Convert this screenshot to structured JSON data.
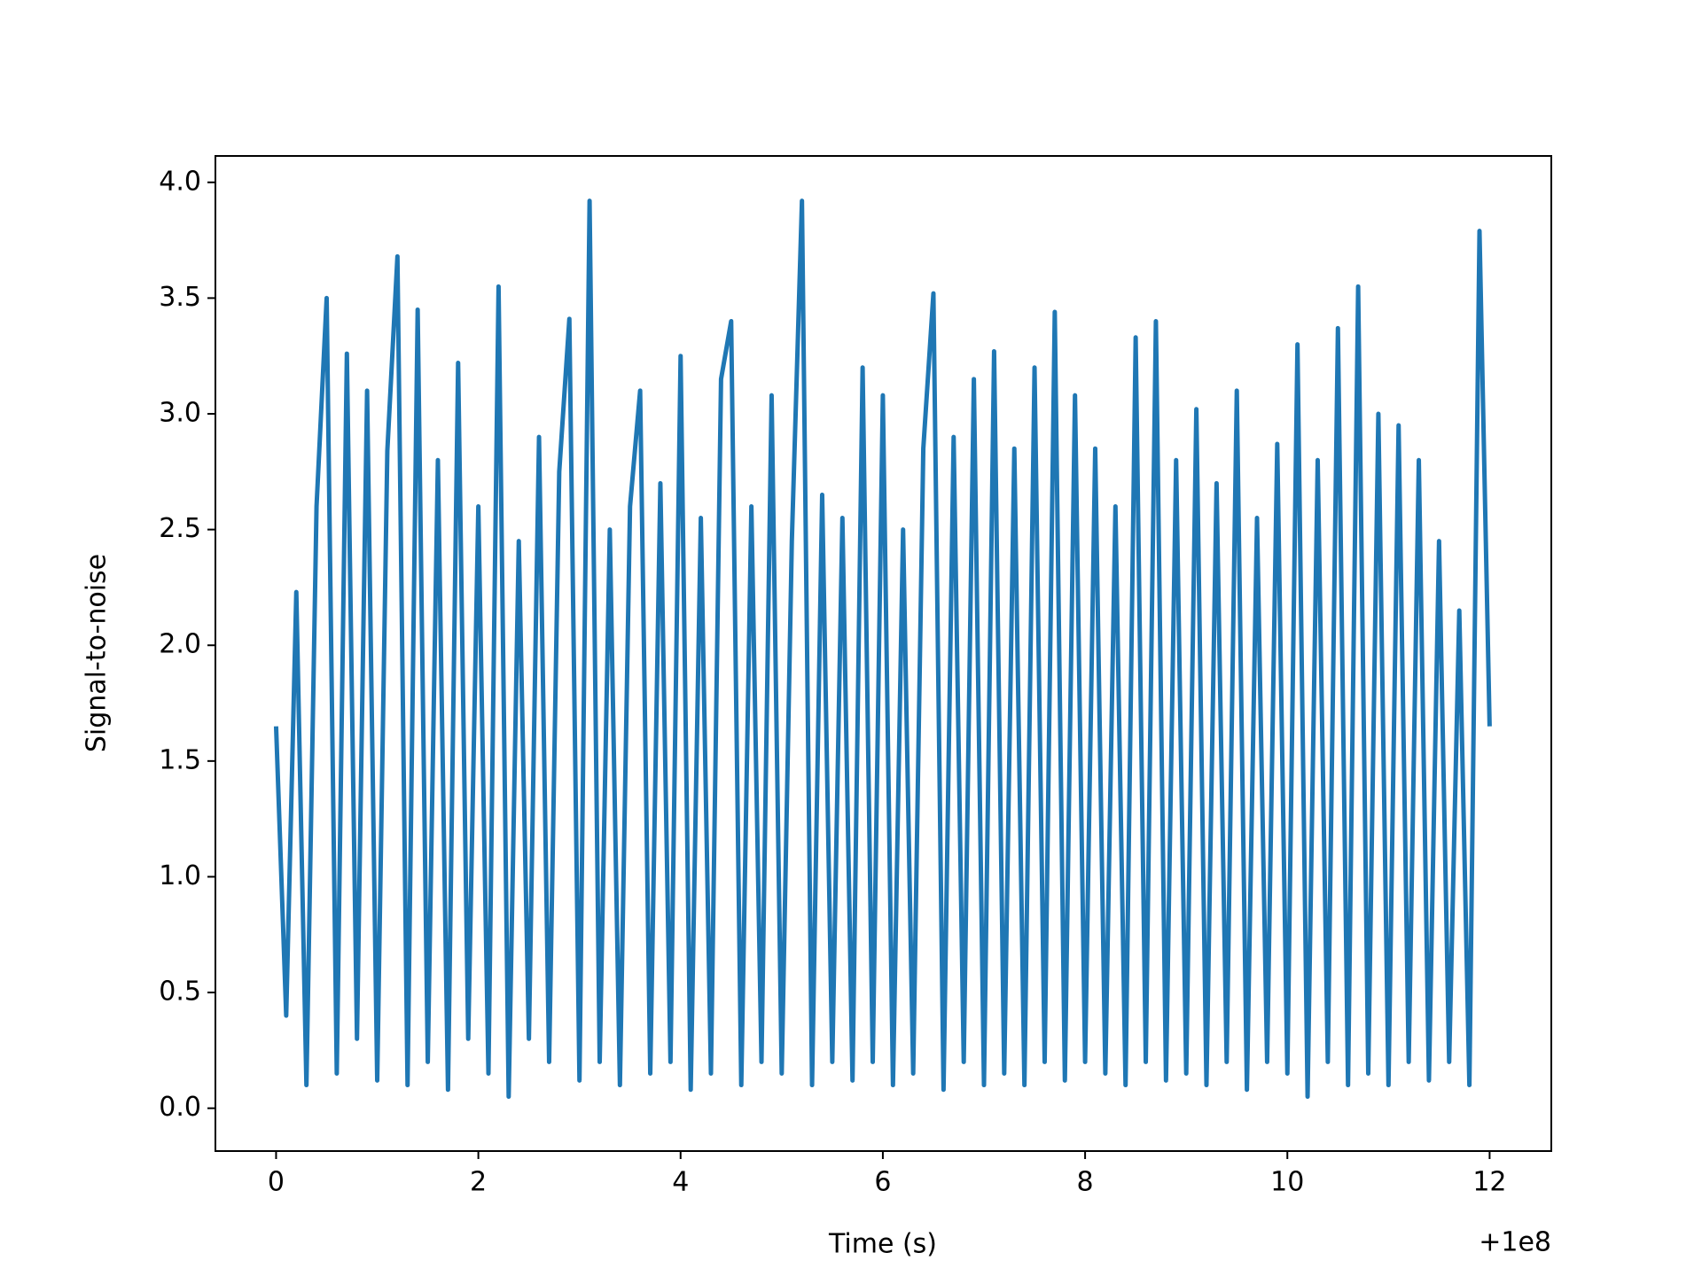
{
  "chart_data": {
    "type": "line",
    "xlabel": "Time (s)",
    "ylabel": "Signal-to-noise",
    "x_offset_label": "+1e8",
    "xlim": [
      -0.6,
      12.61
    ],
    "ylim": [
      -0.185,
      4.114
    ],
    "xticks": [
      0,
      2,
      4,
      6,
      8,
      10,
      12
    ],
    "yticks": [
      {
        "value": 0,
        "label": "0.0"
      },
      0.5,
      {
        "value": 1,
        "label": "1.0"
      },
      1.5,
      {
        "value": 2,
        "label": "2.0"
      },
      2.5,
      {
        "value": 3,
        "label": "3.0"
      },
      3.5,
      {
        "value": 4,
        "label": "4.0"
      }
    ],
    "color": "#1f77b4",
    "x": [
      0,
      0.1,
      0.2,
      0.3,
      0.4,
      0.5,
      0.6,
      0.7,
      0.8,
      0.9,
      1.0,
      1.1,
      1.2,
      1.3,
      1.4,
      1.5,
      1.6,
      1.7,
      1.8,
      1.9,
      2.0,
      2.1,
      2.2,
      2.3,
      2.4,
      2.5,
      2.6,
      2.7,
      2.8,
      2.9,
      3.0,
      3.1,
      3.2,
      3.3,
      3.4,
      3.5,
      3.6,
      3.7,
      3.8,
      3.9,
      4.0,
      4.1,
      4.2,
      4.3,
      4.4,
      4.5,
      4.6,
      4.7,
      4.8,
      4.9,
      5.0,
      5.1,
      5.2,
      5.3,
      5.4,
      5.5,
      5.6,
      5.7,
      5.8,
      5.9,
      6.0,
      6.1,
      6.2,
      6.3,
      6.4,
      6.5,
      6.6,
      6.7,
      6.8,
      6.9,
      7.0,
      7.1,
      7.2,
      7.3,
      7.4,
      7.5,
      7.6,
      7.7,
      7.8,
      7.9,
      8.0,
      8.1,
      8.2,
      8.3,
      8.4,
      8.5,
      8.6,
      8.7,
      8.8,
      8.9,
      9.0,
      9.1,
      9.2,
      9.3,
      9.4,
      9.5,
      9.6,
      9.7,
      9.8,
      9.9,
      10.0,
      10.1,
      10.2,
      10.3,
      10.4,
      10.5,
      10.6,
      10.7,
      10.8,
      10.9,
      11.0,
      11.1,
      11.2,
      11.3,
      11.4,
      11.5,
      11.6,
      11.7,
      11.8,
      11.9,
      12.0
    ],
    "values": [
      1.65,
      0.4,
      2.23,
      0.1,
      2.6,
      3.5,
      0.15,
      3.26,
      0.3,
      3.1,
      0.12,
      2.84,
      3.68,
      0.1,
      3.45,
      0.2,
      2.8,
      0.08,
      3.22,
      0.3,
      2.6,
      0.15,
      3.55,
      0.05,
      2.45,
      0.3,
      2.9,
      0.2,
      2.75,
      3.41,
      0.12,
      3.92,
      0.2,
      2.5,
      0.1,
      2.6,
      3.1,
      0.15,
      2.7,
      0.2,
      3.25,
      0.08,
      2.55,
      0.15,
      3.15,
      3.4,
      0.1,
      2.6,
      0.2,
      3.08,
      0.15,
      2.45,
      3.92,
      0.1,
      2.65,
      0.2,
      2.55,
      0.12,
      3.2,
      0.2,
      3.08,
      0.1,
      2.5,
      0.15,
      2.85,
      3.52,
      0.08,
      2.9,
      0.2,
      3.15,
      0.1,
      3.27,
      0.15,
      2.85,
      0.1,
      3.2,
      0.2,
      3.44,
      0.12,
      3.08,
      0.2,
      2.85,
      0.15,
      2.6,
      0.1,
      3.33,
      0.2,
      3.4,
      0.12,
      2.8,
      0.15,
      3.02,
      0.1,
      2.7,
      0.2,
      3.1,
      0.08,
      2.55,
      0.2,
      2.87,
      0.15,
      3.3,
      0.05,
      2.8,
      0.2,
      3.37,
      0.1,
      3.55,
      0.15,
      3.0,
      0.1,
      2.95,
      0.2,
      2.8,
      0.12,
      2.45,
      0.2,
      2.15,
      0.1,
      3.79,
      1.65
    ]
  }
}
